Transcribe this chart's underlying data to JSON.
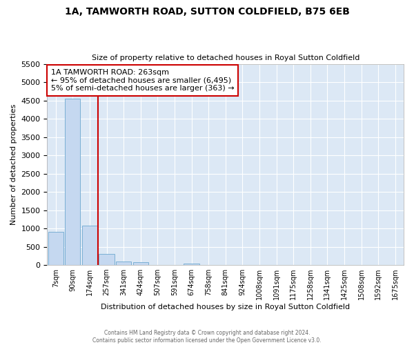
{
  "title": "1A, TAMWORTH ROAD, SUTTON COLDFIELD, B75 6EB",
  "subtitle": "Size of property relative to detached houses in Royal Sutton Coldfield",
  "xlabel": "Distribution of detached houses by size in Royal Sutton Coldfield",
  "ylabel": "Number of detached properties",
  "annotation_line1": "1A TAMWORTH ROAD: 263sqm",
  "annotation_line2": "← 95% of detached houses are smaller (6,495)",
  "annotation_line3": "5% of semi-detached houses are larger (363) →",
  "bar_categories": [
    "7sqm",
    "90sqm",
    "174sqm",
    "257sqm",
    "341sqm",
    "424sqm",
    "507sqm",
    "591sqm",
    "674sqm",
    "758sqm",
    "841sqm",
    "924sqm",
    "1008sqm",
    "1091sqm",
    "1175sqm",
    "1258sqm",
    "1341sqm",
    "1425sqm",
    "1508sqm",
    "1592sqm",
    "1675sqm"
  ],
  "bar_values": [
    900,
    4550,
    1075,
    300,
    100,
    75,
    0,
    0,
    40,
    0,
    0,
    0,
    0,
    0,
    0,
    0,
    0,
    0,
    0,
    0,
    0
  ],
  "bar_color": "#c5d8f0",
  "bar_edge_color": "#7aafd4",
  "ylim": [
    0,
    5500
  ],
  "yticks": [
    0,
    500,
    1000,
    1500,
    2000,
    2500,
    3000,
    3500,
    4000,
    4500,
    5000,
    5500
  ],
  "vline_color": "#cc0000",
  "vline_x": 2.5,
  "footer1": "Contains HM Land Registry data © Crown copyright and database right 2024.",
  "footer2": "Contains public sector information licensed under the Open Government Licence v3.0.",
  "plot_bg_color": "#dce8f5"
}
